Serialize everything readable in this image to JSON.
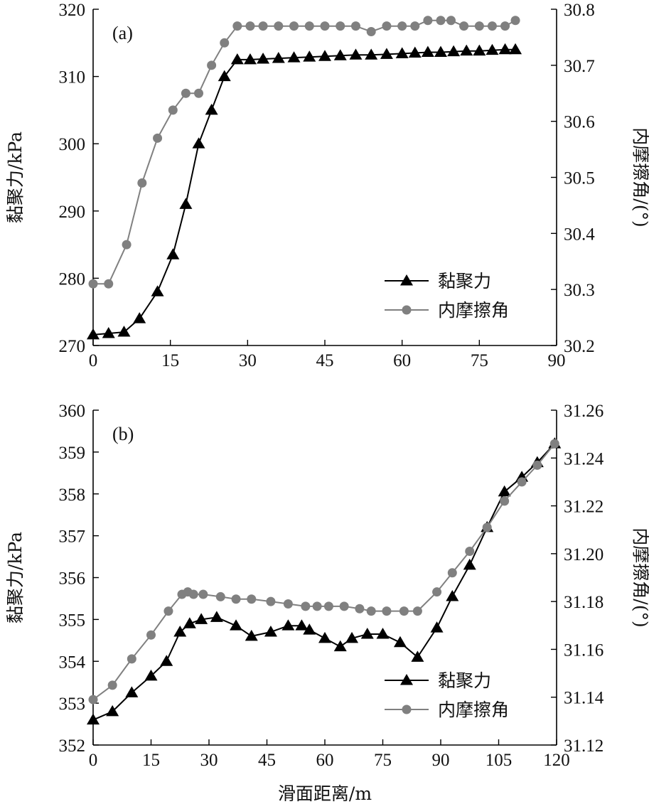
{
  "xlabel": "滑面距离/m",
  "colors": {
    "cohesion": "#000000",
    "friction": "#808080"
  },
  "chart_data": [
    {
      "type": "line",
      "panel_label": "(a)",
      "legend_placement": "bottom-right",
      "xlim": [
        0,
        90
      ],
      "x_ticks": [
        0,
        15,
        30,
        45,
        60,
        75,
        90
      ],
      "ylabel_left": "黏聚力/kPa",
      "ylim_left": [
        270,
        320
      ],
      "y_ticks_left": [
        270,
        280,
        290,
        300,
        310,
        320
      ],
      "ylabel_right": "内摩擦角/(°)",
      "ylim_right": [
        30.2,
        30.8
      ],
      "y_ticks_right": [
        "30.2",
        "30.3",
        "30.4",
        "30.5",
        "30.6",
        "30.7",
        "30.8"
      ],
      "series": [
        {
          "name": "黏聚力",
          "axis": "left",
          "marker": "triangle",
          "points": [
            [
              0,
              271.6
            ],
            [
              3,
              271.8
            ],
            [
              6,
              272
            ],
            [
              9,
              274
            ],
            [
              12.5,
              278
            ],
            [
              15.5,
              283.5
            ],
            [
              18,
              291
            ],
            [
              20.5,
              300
            ],
            [
              23,
              305
            ],
            [
              25.5,
              310
            ],
            [
              28,
              312.5
            ],
            [
              30.5,
              312.5
            ],
            [
              33,
              312.6
            ],
            [
              36,
              312.7
            ],
            [
              39,
              312.8
            ],
            [
              42,
              312.9
            ],
            [
              45,
              313
            ],
            [
              48,
              313.1
            ],
            [
              51,
              313.2
            ],
            [
              54,
              313.2
            ],
            [
              57,
              313.3
            ],
            [
              60,
              313.4
            ],
            [
              62.5,
              313.5
            ],
            [
              65,
              313.6
            ],
            [
              67.5,
              313.6
            ],
            [
              70,
              313.7
            ],
            [
              72.5,
              313.8
            ],
            [
              75,
              313.8
            ],
            [
              77.5,
              313.9
            ],
            [
              80,
              314
            ],
            [
              82,
              314
            ]
          ]
        },
        {
          "name": "内摩擦角",
          "axis": "right",
          "marker": "circle",
          "points": [
            [
              0,
              30.31
            ],
            [
              3,
              30.31
            ],
            [
              6.5,
              30.38
            ],
            [
              9.5,
              30.49
            ],
            [
              12.5,
              30.57
            ],
            [
              15.5,
              30.62
            ],
            [
              18,
              30.65
            ],
            [
              20.5,
              30.65
            ],
            [
              23,
              30.7
            ],
            [
              25.5,
              30.74
            ],
            [
              28,
              30.77
            ],
            [
              30.5,
              30.77
            ],
            [
              33,
              30.77
            ],
            [
              36,
              30.77
            ],
            [
              39,
              30.77
            ],
            [
              42,
              30.77
            ],
            [
              45,
              30.77
            ],
            [
              48,
              30.77
            ],
            [
              51,
              30.77
            ],
            [
              54,
              30.76
            ],
            [
              57,
              30.77
            ],
            [
              60,
              30.77
            ],
            [
              62.5,
              30.77
            ],
            [
              65,
              30.78
            ],
            [
              67.5,
              30.78
            ],
            [
              69.5,
              30.78
            ],
            [
              72,
              30.77
            ],
            [
              75,
              30.77
            ],
            [
              77.5,
              30.77
            ],
            [
              80,
              30.77
            ],
            [
              82,
              30.78
            ]
          ]
        }
      ]
    },
    {
      "type": "line",
      "panel_label": "(b)",
      "legend_placement": "bottom-right",
      "xlim": [
        0,
        120
      ],
      "x_ticks": [
        0,
        15,
        30,
        45,
        60,
        75,
        90,
        105,
        120
      ],
      "ylabel_left": "黏聚力/kPa",
      "ylim_left": [
        352,
        360
      ],
      "y_ticks_left": [
        352,
        353,
        354,
        355,
        356,
        357,
        358,
        359,
        360
      ],
      "ylabel_right": "内摩擦角/(°)",
      "ylim_right": [
        31.12,
        31.26
      ],
      "y_ticks_right": [
        "31.12",
        "31.14",
        "31.16",
        "31.18",
        "31.20",
        "31.22",
        "31.24",
        "31.26"
      ],
      "series": [
        {
          "name": "黏聚力",
          "axis": "left",
          "marker": "triangle",
          "points": [
            [
              0,
              352.6
            ],
            [
              5,
              352.8
            ],
            [
              10,
              353.25
            ],
            [
              15,
              353.65
            ],
            [
              19,
              354
            ],
            [
              22.5,
              354.7
            ],
            [
              25,
              354.9
            ],
            [
              28,
              355
            ],
            [
              32,
              355.05
            ],
            [
              37,
              354.85
            ],
            [
              41,
              354.6
            ],
            [
              46,
              354.7
            ],
            [
              50.5,
              354.85
            ],
            [
              54,
              354.85
            ],
            [
              56,
              354.75
            ],
            [
              60,
              354.55
            ],
            [
              64,
              354.35
            ],
            [
              67,
              354.55
            ],
            [
              71,
              354.65
            ],
            [
              75,
              354.65
            ],
            [
              79.5,
              354.45
            ],
            [
              84,
              354.1
            ],
            [
              89,
              354.8
            ],
            [
              93,
              355.55
            ],
            [
              97.5,
              356.3
            ],
            [
              102,
              357.2
            ],
            [
              106.5,
              358.05
            ],
            [
              111,
              358.4
            ],
            [
              115,
              358.75
            ],
            [
              119.5,
              359.2
            ]
          ]
        },
        {
          "name": "内摩擦角",
          "axis": "right",
          "marker": "circle",
          "points": [
            [
              0,
              31.139
            ],
            [
              5,
              31.145
            ],
            [
              10,
              31.156
            ],
            [
              15,
              31.166
            ],
            [
              19.5,
              31.176
            ],
            [
              23,
              31.183
            ],
            [
              24.5,
              31.184
            ],
            [
              26,
              31.183
            ],
            [
              28.5,
              31.183
            ],
            [
              33,
              31.182
            ],
            [
              37,
              31.181
            ],
            [
              41,
              31.181
            ],
            [
              46,
              31.18
            ],
            [
              50.5,
              31.179
            ],
            [
              55,
              31.178
            ],
            [
              58,
              31.178
            ],
            [
              61,
              31.178
            ],
            [
              65,
              31.178
            ],
            [
              69,
              31.177
            ],
            [
              72,
              31.176
            ],
            [
              76,
              31.176
            ],
            [
              80.5,
              31.176
            ],
            [
              84,
              31.176
            ],
            [
              89,
              31.184
            ],
            [
              93,
              31.192
            ],
            [
              97.5,
              31.201
            ],
            [
              102,
              31.211
            ],
            [
              106.5,
              31.222
            ],
            [
              111,
              31.23
            ],
            [
              115,
              31.237
            ],
            [
              119.5,
              31.246
            ]
          ]
        }
      ]
    }
  ]
}
